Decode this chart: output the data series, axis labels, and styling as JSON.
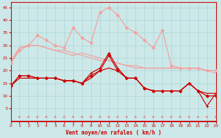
{
  "x": [
    0,
    1,
    2,
    3,
    4,
    5,
    6,
    7,
    8,
    9,
    10,
    11,
    12,
    13,
    14,
    15,
    16,
    17,
    18,
    19,
    20,
    21,
    22,
    23
  ],
  "line_pink_smooth1": [
    24,
    29,
    30,
    30,
    29,
    28,
    27,
    26,
    27,
    26,
    25,
    24,
    23,
    22,
    22,
    21,
    21,
    21,
    21,
    21,
    21,
    21,
    20,
    20
  ],
  "line_pink_smooth2": [
    23,
    29,
    30,
    30,
    29,
    28,
    28,
    27,
    26,
    25,
    24,
    24,
    23,
    22,
    21,
    21,
    21,
    21,
    21,
    21,
    21,
    21,
    20,
    19
  ],
  "line_pink_jagged": [
    23,
    28,
    30,
    34,
    32,
    30,
    29,
    37,
    33,
    31,
    43,
    45,
    42,
    37,
    35,
    32,
    29,
    36,
    22,
    21,
    21,
    21,
    20,
    20
  ],
  "line_dark_plus": [
    14,
    18,
    18,
    17,
    17,
    17,
    16,
    16,
    15,
    19,
    21,
    27,
    21,
    17,
    17,
    13,
    12,
    12,
    12,
    12,
    15,
    12,
    6,
    11
  ],
  "line_dark_diamond": [
    14,
    18,
    18,
    17,
    17,
    17,
    16,
    16,
    15,
    18,
    20,
    26,
    20,
    17,
    17,
    13,
    12,
    12,
    12,
    12,
    15,
    12,
    10,
    10
  ],
  "line_dark_plain": [
    14,
    17,
    17,
    17,
    17,
    17,
    16,
    16,
    15,
    17,
    20,
    21,
    20,
    17,
    17,
    13,
    12,
    12,
    12,
    12,
    15,
    12,
    11,
    11
  ],
  "xlabel": "Vent moyen/en rafales ( km/h )",
  "ylim": [
    0,
    47
  ],
  "xlim": [
    0,
    23
  ],
  "yticks": [
    5,
    10,
    15,
    20,
    25,
    30,
    35,
    40,
    45
  ],
  "xticks": [
    0,
    1,
    2,
    3,
    4,
    5,
    6,
    7,
    8,
    9,
    10,
    11,
    12,
    13,
    14,
    15,
    16,
    17,
    18,
    19,
    20,
    21,
    22,
    23
  ],
  "bg_color": "#cce8e8",
  "pink_color": "#f4a0a0",
  "dark_color": "#cc0000",
  "arrow_color": "#f47070",
  "grid_color": "#aad4d4",
  "spine_color": "#cc0000",
  "tick_color": "#cc0000",
  "label_color": "#cc0000"
}
